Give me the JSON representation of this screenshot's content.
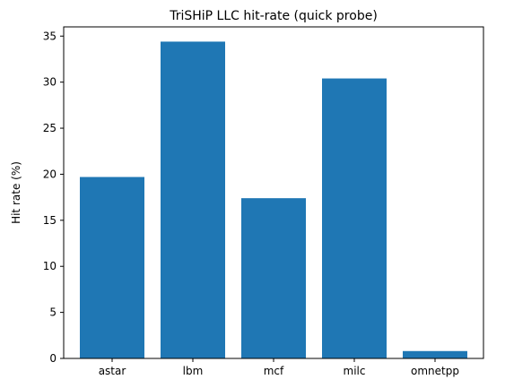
{
  "chart_data": {
    "type": "bar",
    "title": "TriSHiP LLC hit-rate (quick probe)",
    "xlabel": "",
    "ylabel": "Hit rate (%)",
    "categories": [
      "astar",
      "lbm",
      "mcf",
      "milc",
      "omnetpp"
    ],
    "values": [
      19.7,
      34.4,
      17.4,
      30.4,
      0.8
    ],
    "ylim": [
      0,
      36
    ],
    "yticks": [
      0,
      5,
      10,
      15,
      20,
      25,
      30,
      35
    ],
    "bar_color": "#1f77b4",
    "grid": false,
    "legend": "none"
  }
}
